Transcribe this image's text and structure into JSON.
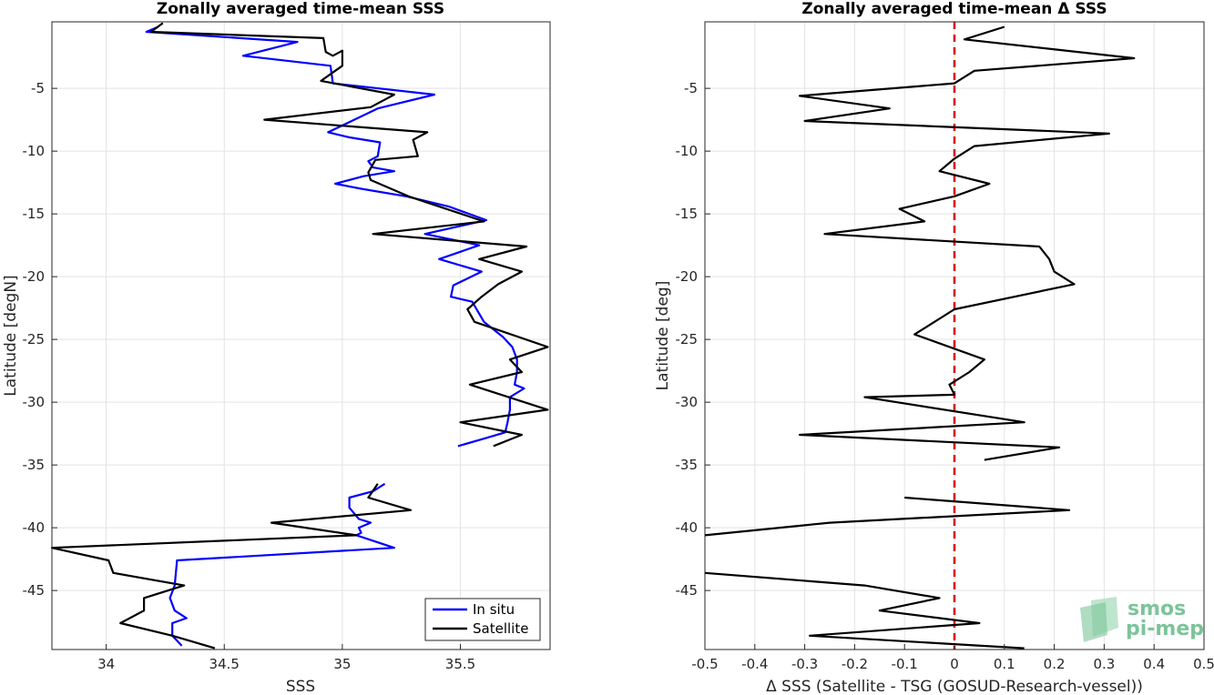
{
  "chart_data": [
    {
      "type": "line",
      "title": "Zonally averaged time-mean SSS",
      "xlabel": "SSS",
      "ylabel": "Latitude [degN]",
      "xlim": [
        33.77,
        35.88
      ],
      "ylim": [
        -49.7,
        0.3
      ],
      "xticks": [
        34,
        34.5,
        35,
        35.5
      ],
      "xtick_labels": [
        "34",
        "34.5",
        "35",
        "35.5"
      ],
      "yticks": [
        -5,
        -10,
        -15,
        -20,
        -25,
        -30,
        -35,
        -40,
        -45
      ],
      "ytick_labels": [
        "-5",
        "-10",
        "-15",
        "-20",
        "-25",
        "-30",
        "-35",
        "-40",
        "-45"
      ],
      "grid": true,
      "legend": "bottom-right",
      "series": [
        {
          "name": "In situ",
          "color": "#0000ff",
          "segments": [
            [
              [
                34.22,
                -0.1
              ],
              [
                34.17,
                -0.5
              ],
              [
                34.81,
                -1.3
              ],
              [
                34.58,
                -2.4
              ],
              [
                34.95,
                -3.2
              ],
              [
                34.96,
                -4.6
              ],
              [
                35.39,
                -5.5
              ],
              [
                35.15,
                -6.6
              ],
              [
                35.04,
                -7.6
              ],
              [
                34.94,
                -8.5
              ],
              [
                35.03,
                -8.9
              ],
              [
                35.16,
                -9.3
              ],
              [
                35.15,
                -10.4
              ],
              [
                35.11,
                -10.8
              ],
              [
                35.13,
                -11.3
              ],
              [
                35.22,
                -11.6
              ],
              [
                35.09,
                -12.0
              ],
              [
                34.97,
                -12.6
              ],
              [
                35.08,
                -13.0
              ],
              [
                35.27,
                -13.6
              ],
              [
                35.45,
                -14.4
              ],
              [
                35.61,
                -15.5
              ],
              [
                35.35,
                -16.6
              ],
              [
                35.58,
                -17.5
              ],
              [
                35.41,
                -18.6
              ],
              [
                35.59,
                -19.6
              ],
              [
                35.47,
                -20.7
              ],
              [
                35.46,
                -21.6
              ],
              [
                35.55,
                -22.0
              ],
              [
                35.6,
                -23.6
              ],
              [
                35.68,
                -24.8
              ],
              [
                35.72,
                -25.6
              ],
              [
                35.74,
                -26.6
              ],
              [
                35.74,
                -27.6
              ],
              [
                35.73,
                -28.6
              ],
              [
                35.77,
                -28.9
              ],
              [
                35.71,
                -29.6
              ],
              [
                35.71,
                -30.6
              ],
              [
                35.7,
                -31.6
              ],
              [
                35.69,
                -32.4
              ],
              [
                35.6,
                -32.9
              ],
              [
                35.49,
                -33.5
              ]
            ],
            [
              [
                35.18,
                -36.5
              ],
              [
                35.13,
                -37.1
              ],
              [
                35.03,
                -37.6
              ],
              [
                35.03,
                -38.4
              ],
              [
                35.07,
                -39.3
              ],
              [
                35.12,
                -39.6
              ],
              [
                35.07,
                -40.0
              ],
              [
                35.08,
                -40.4
              ],
              [
                35.06,
                -40.6
              ],
              [
                35.22,
                -41.6
              ],
              [
                34.3,
                -42.6
              ],
              [
                34.29,
                -44.6
              ],
              [
                34.27,
                -45.6
              ],
              [
                34.29,
                -46.6
              ],
              [
                34.34,
                -47.2
              ],
              [
                34.28,
                -47.6
              ],
              [
                34.28,
                -48.6
              ],
              [
                34.32,
                -49.4
              ]
            ]
          ]
        },
        {
          "name": "Satellite",
          "color": "#000000",
          "segments": [
            [
              [
                34.24,
                0.2
              ],
              [
                34.19,
                -0.5
              ],
              [
                34.92,
                -1.0
              ],
              [
                34.93,
                -2.1
              ],
              [
                34.96,
                -2.4
              ],
              [
                35.0,
                -2.0
              ],
              [
                35.0,
                -3.2
              ],
              [
                34.97,
                -3.6
              ],
              [
                34.91,
                -4.4
              ],
              [
                35.22,
                -5.5
              ],
              [
                35.12,
                -6.5
              ],
              [
                34.67,
                -7.5
              ],
              [
                35.36,
                -8.5
              ],
              [
                35.3,
                -9.1
              ],
              [
                35.32,
                -10.4
              ],
              [
                35.14,
                -10.7
              ],
              [
                35.11,
                -11.7
              ],
              [
                35.12,
                -12.3
              ],
              [
                35.28,
                -13.6
              ],
              [
                35.6,
                -15.6
              ],
              [
                35.13,
                -16.6
              ],
              [
                35.78,
                -17.6
              ],
              [
                35.58,
                -18.6
              ],
              [
                35.76,
                -19.6
              ],
              [
                35.66,
                -20.6
              ],
              [
                35.59,
                -21.6
              ],
              [
                35.53,
                -22.6
              ],
              [
                35.56,
                -23.6
              ],
              [
                35.87,
                -25.6
              ],
              [
                35.71,
                -26.6
              ],
              [
                35.76,
                -27.6
              ],
              [
                35.54,
                -28.6
              ],
              [
                35.87,
                -30.6
              ],
              [
                35.5,
                -31.6
              ],
              [
                35.76,
                -32.6
              ],
              [
                35.64,
                -33.5
              ]
            ],
            [
              [
                35.15,
                -36.5
              ],
              [
                35.11,
                -37.6
              ],
              [
                35.29,
                -38.6
              ],
              [
                34.7,
                -39.6
              ],
              [
                35.06,
                -40.6
              ],
              [
                33.77,
                -41.6
              ],
              [
                34.01,
                -42.6
              ],
              [
                34.03,
                -43.6
              ],
              [
                34.33,
                -44.6
              ],
              [
                34.16,
                -45.6
              ],
              [
                34.16,
                -46.6
              ],
              [
                34.06,
                -47.6
              ],
              [
                34.28,
                -48.6
              ],
              [
                34.46,
                -49.6
              ]
            ]
          ]
        }
      ]
    },
    {
      "type": "line",
      "title": "Zonally averaged time-mean Δ SSS",
      "xlabel": "Δ SSS (Satellite - TSG (GOSUD-Research-vessel))",
      "ylabel": "Latitude [deg]",
      "xlim": [
        -0.5,
        0.5
      ],
      "ylim": [
        -49.7,
        0.3
      ],
      "xticks": [
        -0.5,
        -0.4,
        -0.3,
        -0.2,
        -0.1,
        0,
        0.1,
        0.2,
        0.3,
        0.4,
        0.5
      ],
      "xtick_labels": [
        "-0.5",
        "-0.4",
        "-0.3",
        "-0.2",
        "-0.1",
        "0",
        "0.1",
        "0.2",
        "0.3",
        "0.4",
        "0.5"
      ],
      "yticks": [
        -5,
        -10,
        -15,
        -20,
        -25,
        -30,
        -35,
        -40,
        -45
      ],
      "ytick_labels": [
        "-5",
        "-10",
        "-15",
        "-20",
        "-25",
        "-30",
        "-35",
        "-40",
        "-45"
      ],
      "grid": true,
      "reference_line": {
        "x": 0,
        "color": "#e00000",
        "style": "dashed"
      },
      "series": [
        {
          "color": "#000000",
          "segments": [
            [
              [
                0.1,
                -0.1
              ],
              [
                0.02,
                -1.1
              ],
              [
                0.36,
                -2.6
              ],
              [
                0.04,
                -3.6
              ],
              [
                0.0,
                -4.6
              ],
              [
                -0.31,
                -5.6
              ],
              [
                -0.13,
                -6.6
              ],
              [
                -0.3,
                -7.6
              ],
              [
                0.31,
                -8.6
              ],
              [
                0.04,
                -9.6
              ],
              [
                0.0,
                -10.6
              ],
              [
                -0.03,
                -11.6
              ],
              [
                0.07,
                -12.6
              ],
              [
                0.0,
                -13.6
              ],
              [
                -0.11,
                -14.6
              ],
              [
                -0.06,
                -15.6
              ],
              [
                -0.26,
                -16.6
              ],
              [
                0.17,
                -17.6
              ],
              [
                0.19,
                -18.6
              ],
              [
                0.2,
                -19.6
              ],
              [
                0.24,
                -20.6
              ],
              [
                0.0,
                -22.6
              ],
              [
                -0.08,
                -24.6
              ],
              [
                0.06,
                -26.6
              ],
              [
                0.03,
                -27.6
              ],
              [
                -0.01,
                -28.6
              ],
              [
                0.0,
                -29.4
              ],
              [
                -0.18,
                -29.6
              ],
              [
                0.14,
                -31.6
              ],
              [
                -0.31,
                -32.6
              ],
              [
                0.21,
                -33.6
              ],
              [
                0.06,
                -34.6
              ]
            ],
            [
              [
                -0.1,
                -37.6
              ],
              [
                0.23,
                -38.6
              ],
              [
                -0.25,
                -39.6
              ],
              [
                -0.5,
                -40.6
              ]
            ],
            [
              [
                -0.5,
                -43.6
              ],
              [
                -0.18,
                -44.6
              ],
              [
                -0.03,
                -45.6
              ],
              [
                -0.15,
                -46.6
              ],
              [
                0.05,
                -47.6
              ],
              [
                -0.29,
                -48.6
              ],
              [
                0.14,
                -49.6
              ]
            ]
          ]
        }
      ]
    }
  ],
  "legend": {
    "items": [
      {
        "label": "In situ",
        "color": "#0000ff"
      },
      {
        "label": "Satellite",
        "color": "#000000"
      }
    ]
  },
  "logo": {
    "line1": "smos",
    "line2": "pi-mep"
  }
}
